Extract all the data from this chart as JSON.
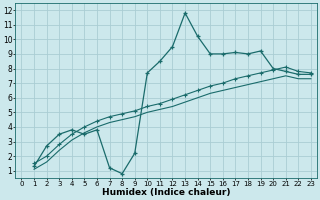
{
  "xlabel": "Humidex (Indice chaleur)",
  "bg_color": "#cce8ec",
  "grid_color": "#aacdd4",
  "line_color": "#1a6b6b",
  "xlim": [
    -0.5,
    23.5
  ],
  "ylim": [
    0.5,
    12.5
  ],
  "xticks": [
    0,
    1,
    2,
    3,
    4,
    5,
    6,
    7,
    8,
    9,
    10,
    11,
    12,
    13,
    14,
    15,
    16,
    17,
    18,
    19,
    20,
    21,
    22,
    23
  ],
  "yticks": [
    1,
    2,
    3,
    4,
    5,
    6,
    7,
    8,
    9,
    10,
    11,
    12
  ],
  "curve1_x": [
    1,
    2,
    3,
    4,
    5,
    6,
    7,
    8,
    9,
    10,
    11,
    12,
    13,
    14,
    15,
    16,
    17,
    18,
    19,
    20,
    21,
    22,
    23
  ],
  "curve1_y": [
    1.3,
    2.7,
    3.5,
    3.8,
    3.5,
    3.8,
    1.2,
    0.8,
    2.2,
    7.7,
    8.5,
    9.5,
    11.8,
    10.2,
    9.0,
    9.0,
    9.1,
    9.0,
    9.2,
    8.0,
    7.8,
    7.6,
    7.6
  ],
  "curve2_x": [
    1,
    2,
    3,
    4,
    5,
    6,
    7,
    8,
    9,
    10,
    11,
    12,
    13,
    14,
    15,
    16,
    17,
    18,
    19,
    20,
    21,
    22,
    23
  ],
  "curve2_y": [
    1.5,
    2.0,
    2.8,
    3.5,
    4.0,
    4.4,
    4.7,
    4.9,
    5.1,
    5.4,
    5.6,
    5.9,
    6.2,
    6.5,
    6.8,
    7.0,
    7.3,
    7.5,
    7.7,
    7.9,
    8.1,
    7.8,
    7.7
  ],
  "curve3_x": [
    1,
    2,
    3,
    4,
    5,
    6,
    7,
    8,
    9,
    10,
    11,
    12,
    13,
    14,
    15,
    16,
    17,
    18,
    19,
    20,
    21,
    22,
    23
  ],
  "curve3_y": [
    1.1,
    1.6,
    2.4,
    3.1,
    3.6,
    4.0,
    4.3,
    4.5,
    4.7,
    5.0,
    5.2,
    5.4,
    5.7,
    6.0,
    6.3,
    6.5,
    6.7,
    6.9,
    7.1,
    7.3,
    7.5,
    7.3,
    7.3
  ]
}
